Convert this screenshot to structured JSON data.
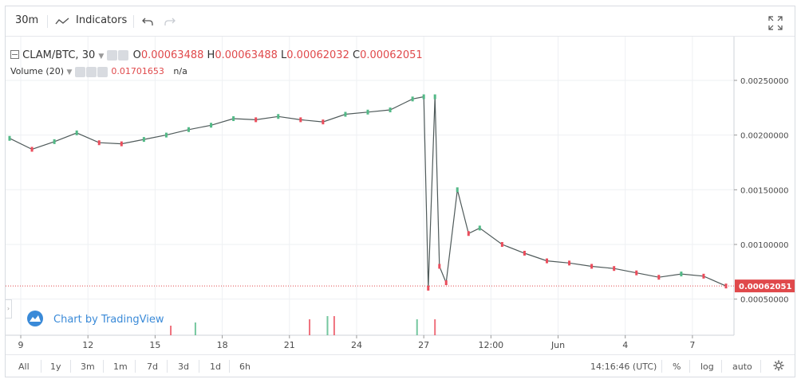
{
  "toolbar": {
    "interval": "30m",
    "indicators_label": "Indicators"
  },
  "legend": {
    "symbol": "CLAM/BTC, 30",
    "open_label": "O",
    "open": "0.00063488",
    "high_label": "H",
    "high": "0.00063488",
    "low_label": "L",
    "low": "0.00062032",
    "close_label": "C",
    "close": "0.00062051"
  },
  "volume_legend": {
    "label": "Volume (20)",
    "value": "0.01701653",
    "extra": "n/a"
  },
  "watermark": "Chart by TradingView",
  "price_badge": "0.00062051",
  "bottom": {
    "ranges": [
      "All",
      "1y",
      "3m",
      "1m",
      "7d",
      "3d",
      "1d",
      "6h"
    ],
    "time": "14:16:46 (UTC)",
    "percent": "%",
    "log": "log",
    "auto": "auto"
  },
  "colors": {
    "up": "#53b987",
    "down": "#eb4d5c",
    "badge": "#e0494b",
    "link": "#3a8ad8"
  },
  "icons": [
    "line-chart-icon",
    "undo-icon",
    "redo-icon",
    "fullscreen-icon",
    "collapse-icon",
    "eye-icon",
    "gear-icon",
    "close-icon",
    "tradingview-logo-icon",
    "settings-gear-icon"
  ],
  "chart_data": {
    "type": "line",
    "pair": "CLAM/BTC",
    "x_ticks": [
      "9",
      "12",
      "15",
      "18",
      "21",
      "24",
      "27",
      "12:00",
      "Jun",
      "4",
      "7"
    ],
    "y_ticks": [
      "0.00250000",
      "0.00200000",
      "0.00150000",
      "0.00100000",
      "0.00050000"
    ],
    "ylim": [
      0.00017,
      0.0029
    ],
    "series": [
      {
        "x": [
          0,
          1,
          2,
          3,
          4,
          5,
          6,
          7,
          8,
          9,
          10,
          11,
          12,
          13,
          14,
          15,
          16,
          17,
          18,
          18.5,
          18.7,
          19,
          19.2,
          19.5,
          20,
          20.5,
          21,
          22,
          23,
          24,
          25,
          26,
          27,
          28,
          29,
          30,
          31,
          32
        ],
        "values": [
          0.00197,
          0.00187,
          0.00194,
          0.00202,
          0.00193,
          0.00192,
          0.00196,
          0.002,
          0.00205,
          0.00209,
          0.00215,
          0.00214,
          0.00217,
          0.00214,
          0.00212,
          0.00219,
          0.00221,
          0.00223,
          0.00233,
          0.00235,
          0.0006,
          0.00235,
          0.0008,
          0.00065,
          0.0015,
          0.0011,
          0.00115,
          0.001,
          0.00092,
          0.00085,
          0.00083,
          0.0008,
          0.00078,
          0.00074,
          0.0007,
          0.00073,
          0.00071,
          0.00062
        ]
      }
    ],
    "volume": {
      "x": [
        7.2,
        8.3,
        13.4,
        14.2,
        14.5,
        18.2,
        19.0
      ],
      "values": [
        0.6,
        0.8,
        1.0,
        1.2,
        1.2,
        1.0,
        1.0
      ]
    },
    "last_price": 0.00062051,
    "grid": true,
    "legend_position": "top-left"
  }
}
